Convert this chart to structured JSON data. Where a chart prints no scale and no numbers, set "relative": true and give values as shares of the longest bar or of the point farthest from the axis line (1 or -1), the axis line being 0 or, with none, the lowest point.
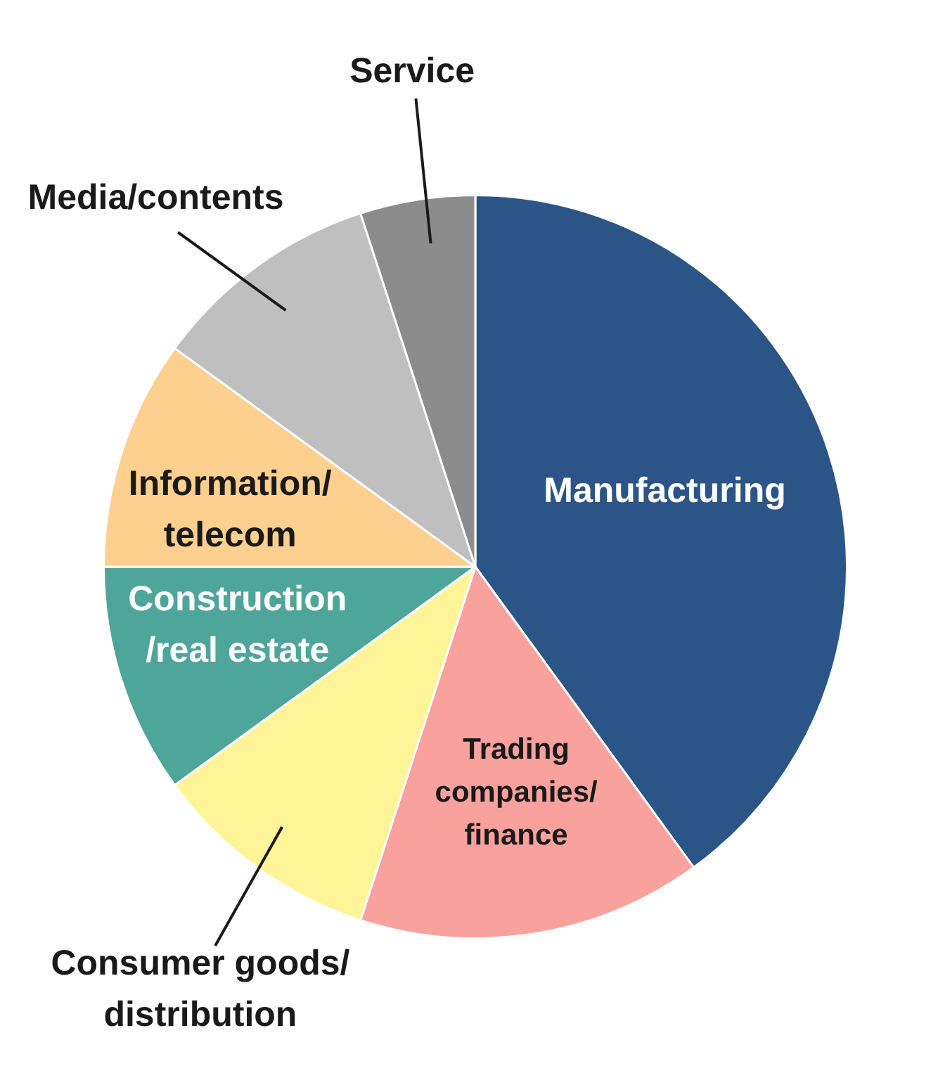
{
  "chart_data": {
    "type": "pie",
    "relative": true,
    "categories": [
      "Manufacturing",
      "Trading\ncompanies/\nfinance",
      "Consumer goods/\ndistribution",
      "Construction\n/real estate",
      "Information/\ntelecom",
      "Media/contents",
      "Service"
    ],
    "values": [
      40,
      15,
      10,
      10,
      10,
      10,
      5
    ],
    "colors": [
      "#2b5586",
      "#f9a19c",
      "#fff498",
      "#4ea59a",
      "#fdd08f",
      "#bfbfbf",
      "#8c8c8c"
    ],
    "legend": false
  }
}
